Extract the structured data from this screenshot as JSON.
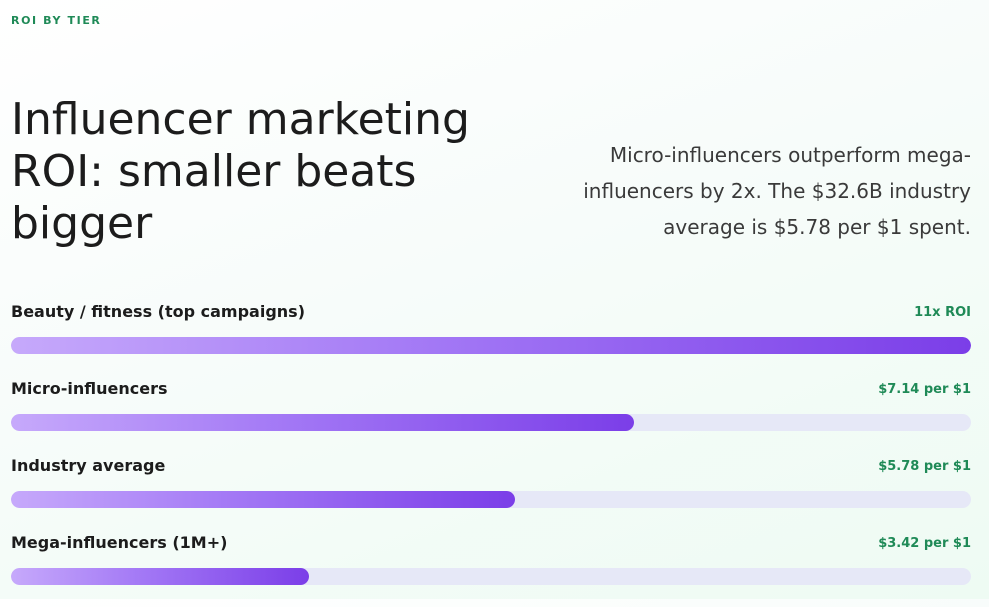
{
  "eyebrow": "ROI BY TIER",
  "title": "Influencer marketing ROI: smaller beats bigger",
  "subtitle": "Micro-influencers outperform mega-influencers by 2x. The $32.6B industry average is $5.78 per $1 spent.",
  "colors": {
    "accent_green": "#1f8a57",
    "bar_start": "#c6a9fb",
    "bar_end": "#7b3ee8",
    "track": "#e6e8f7"
  },
  "chart_data": {
    "type": "bar",
    "orientation": "horizontal",
    "title": "Influencer marketing ROI: smaller beats bigger",
    "categories": [
      "Beauty / fitness (top campaigns)",
      "Micro-influencers",
      "Industry average",
      "Mega-influencers (1M+)"
    ],
    "value_labels": [
      "11x ROI",
      "$7.14 per $1",
      "$5.78 per $1",
      "$3.42 per $1"
    ],
    "values": [
      11,
      7.14,
      5.78,
      3.42
    ],
    "xlim": [
      0,
      11
    ],
    "grid": false
  }
}
